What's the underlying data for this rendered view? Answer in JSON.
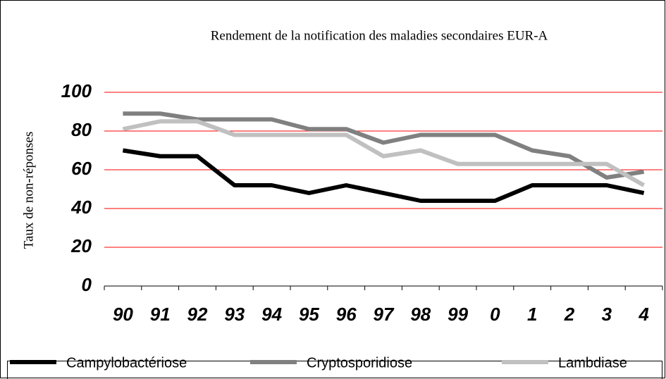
{
  "chart_data": {
    "type": "line",
    "title": "Rendement de la notification des maladies secondaires EUR-A",
    "y_label": "Taux de non-réponses",
    "categories": [
      "90",
      "91",
      "92",
      "93",
      "94",
      "95",
      "96",
      "97",
      "98",
      "99",
      "0",
      "1",
      "2",
      "3",
      "4"
    ],
    "series": [
      {
        "name": "Campylobactériose",
        "color": "#000000",
        "values": [
          70,
          67,
          67,
          52,
          52,
          48,
          52,
          48,
          44,
          44,
          44,
          52,
          52,
          52,
          48
        ]
      },
      {
        "name": "Cryptosporidiose",
        "color": "#808080",
        "values": [
          89,
          89,
          86,
          86,
          86,
          81,
          81,
          74,
          78,
          78,
          78,
          70,
          67,
          56,
          59
        ]
      },
      {
        "name": "Lambdiase",
        "color": "#c0c0c0",
        "values": [
          81,
          85,
          85,
          78,
          78,
          78,
          78,
          67,
          70,
          63,
          63,
          63,
          63,
          63,
          52
        ]
      }
    ],
    "ylim": [
      0,
      100
    ],
    "yticks": [
      0,
      20,
      40,
      60,
      80,
      100
    ],
    "grid": true,
    "grid_color": "#ff0000",
    "legend": "bottom"
  }
}
